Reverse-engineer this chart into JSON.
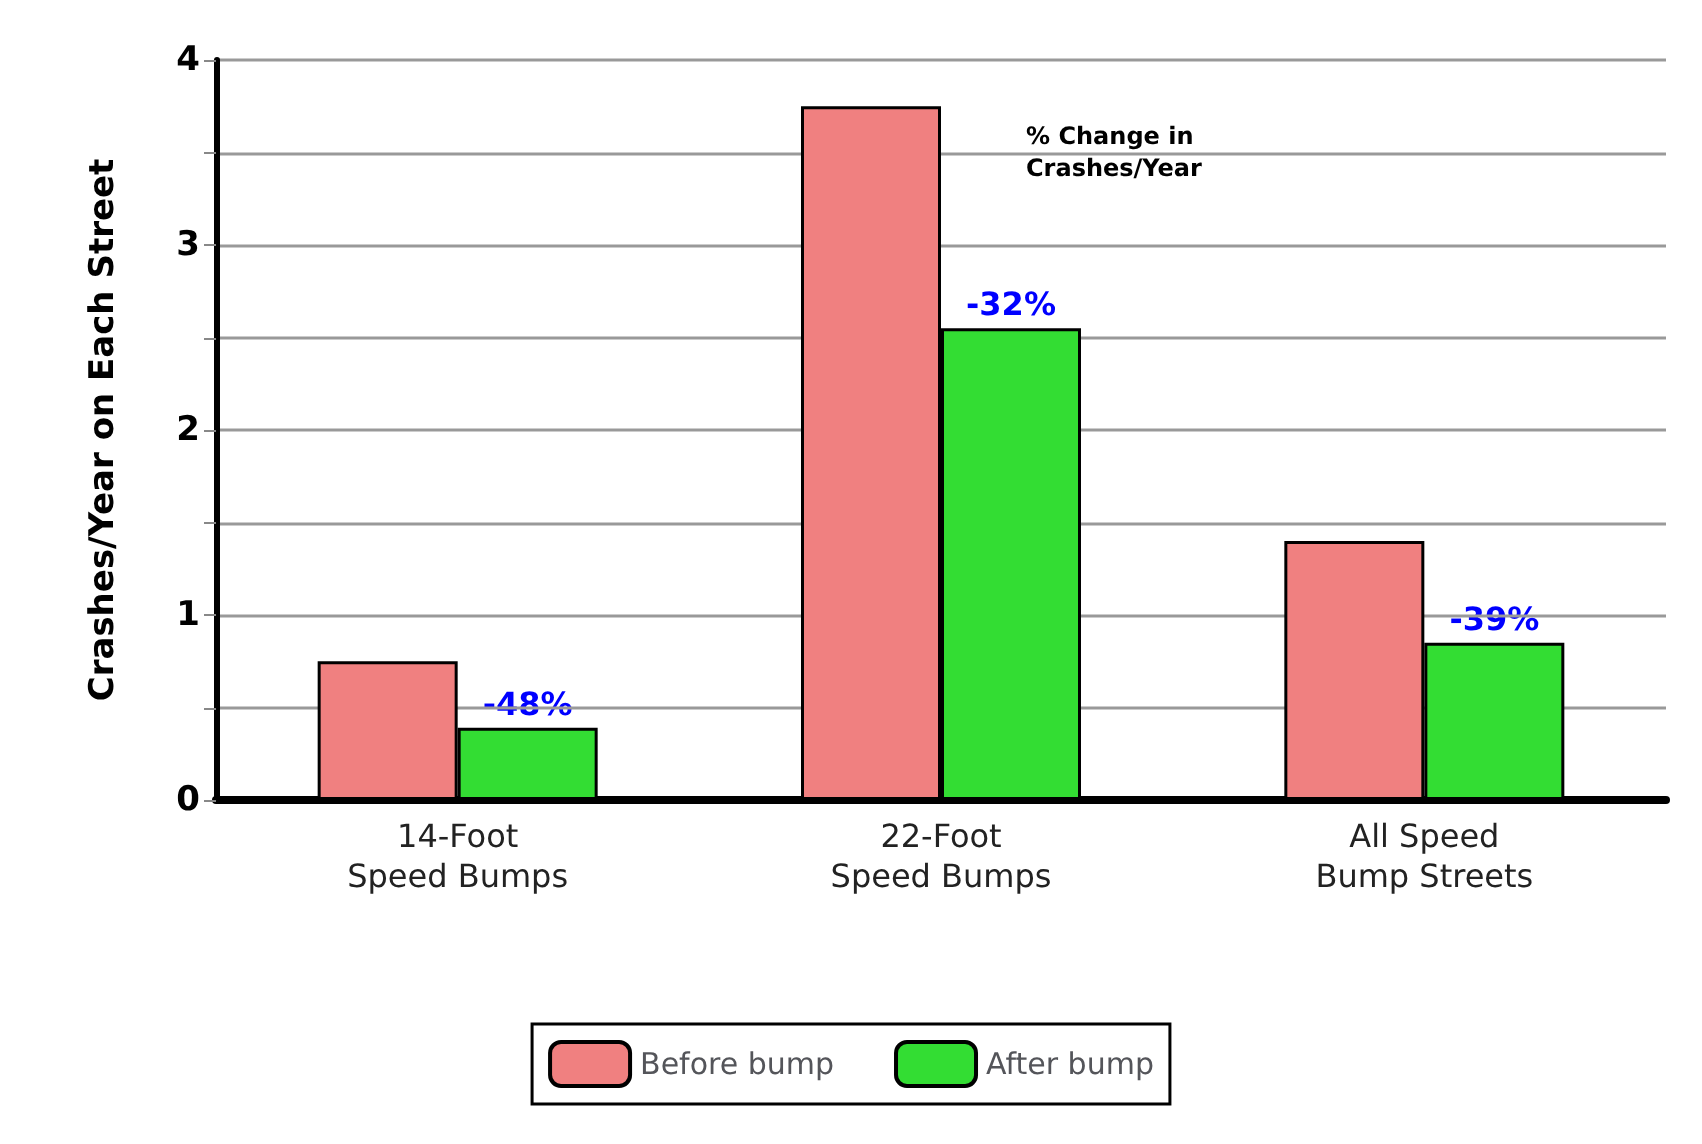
{
  "chart_data": {
    "type": "bar",
    "ylabel": "Crashes/Year on Each Street",
    "categories": [
      "14-Foot\nSpeed Bumps",
      "22-Foot\nSpeed Bumps",
      "All Speed\nBump Streets"
    ],
    "series": [
      {
        "name": "Before bump",
        "color": "#f08080",
        "values": [
          0.75,
          3.75,
          1.4
        ]
      },
      {
        "name": "After bump",
        "color": "#33dd33",
        "values": [
          0.39,
          2.55,
          0.85
        ]
      }
    ],
    "ylim": [
      0,
      4
    ],
    "yticks": [
      0,
      {
        "value": 0.5,
        "label": null
      },
      1,
      {
        "value": 1.5,
        "label": null
      },
      2,
      {
        "value": 2.5,
        "label": null
      },
      3,
      {
        "value": 3.5,
        "label": null
      },
      4
    ],
    "grid": "y",
    "legend": "bottom",
    "annotations": [
      "% Change in Crashes/Year",
      {
        "text": "-48%",
        "x": "14-Foot\nSpeed Bumps",
        "y": 0.39
      },
      {
        "text": "-32%",
        "x": "22-Foot\nSpeed Bumps",
        "y": 2.55
      },
      {
        "text": "-39%",
        "x": "All Speed\nBump Streets",
        "y": 0.85
      }
    ]
  }
}
